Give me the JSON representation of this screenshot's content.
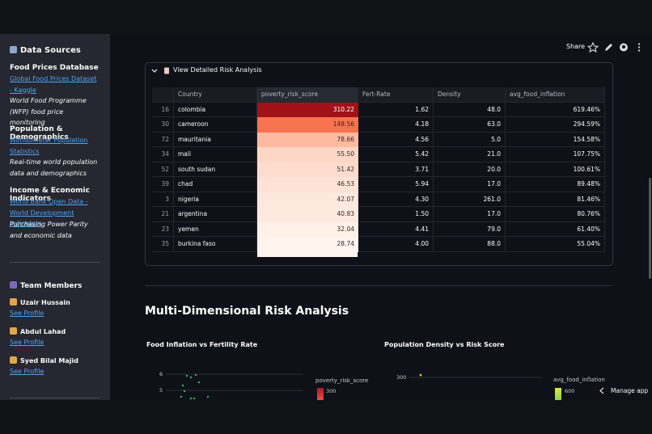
{
  "header": {
    "share": "Share"
  },
  "sidebar": {
    "data_sources_title": "Data Sources",
    "sources": [
      {
        "title": "Food Prices Database",
        "link": "Global Food Prices Dataset - Kaggle",
        "description": "World Food Programme (WFP) food price monitoring"
      },
      {
        "title": "Population & Demographics",
        "link": "Worldometer Population Statistics",
        "description": "Real-time world population data and demographics"
      },
      {
        "title": "Income & Economic Indicators",
        "link": "World Bank Open Data - World Development Indicators",
        "description": "Purchasing Power Parity and economic data"
      }
    ],
    "team_title": "Team Members",
    "members": [
      {
        "name": "Uzair Hussain",
        "link": "See Profile"
      },
      {
        "name": "Abdul Lahad",
        "link": "See Profile"
      },
      {
        "name": "Syed Bilal Majid",
        "link": "See Profile"
      }
    ]
  },
  "expander": {
    "label": "View Detailed Risk Analysis",
    "table": {
      "columns": [
        "Country",
        "poverty_risk_score",
        "Fert-Rate",
        "Density",
        "avg_food_inflation"
      ],
      "rows": [
        [
          "16",
          "colombia",
          "310.22",
          "1.62",
          "48.0",
          "619.46%"
        ],
        [
          "30",
          "cameroon",
          "148.56",
          "4.18",
          "63.0",
          "294.59%"
        ],
        [
          "72",
          "mauritania",
          "78.66",
          "4.56",
          "5.0",
          "154.58%"
        ],
        [
          "34",
          "mali",
          "55.50",
          "5.42",
          "21.0",
          "107.75%"
        ],
        [
          "52",
          "south sudan",
          "51.42",
          "3.71",
          "20.0",
          "100.61%"
        ],
        [
          "39",
          "chad",
          "46.53",
          "5.94",
          "17.0",
          "89.48%"
        ],
        [
          "3",
          "nigeria",
          "42.07",
          "4.30",
          "261.0",
          "81.46%"
        ],
        [
          "21",
          "argentina",
          "40.83",
          "1.50",
          "17.0",
          "80.76%"
        ],
        [
          "23",
          "yemen",
          "32.04",
          "4.41",
          "79.0",
          "61.40%"
        ],
        [
          "35",
          "burkina faso",
          "28.74",
          "4.00",
          "88.0",
          "55.04%"
        ]
      ],
      "score_colors": [
        "#a11218",
        "#f7734f",
        "#fcbba1",
        "#fdd6c5",
        "#fddccd",
        "#fee2d5",
        "#fee7dc",
        "#fee9df",
        "#fff0e8",
        "#fff3ed"
      ]
    }
  },
  "section": {
    "title": "Multi-Dimensional Risk Analysis",
    "charts": [
      {
        "title": "Food Inflation vs Fertility Rate",
        "yticks": [
          "6",
          "5"
        ],
        "legend_title": "poverty_risk_score",
        "legend_tick": "300"
      },
      {
        "title": "Population Density vs Risk Score",
        "yticks": [
          "300"
        ],
        "legend_title": "avg_food_inflation",
        "legend_tick": "600"
      }
    ]
  },
  "footer": {
    "manage": "Manage app"
  }
}
